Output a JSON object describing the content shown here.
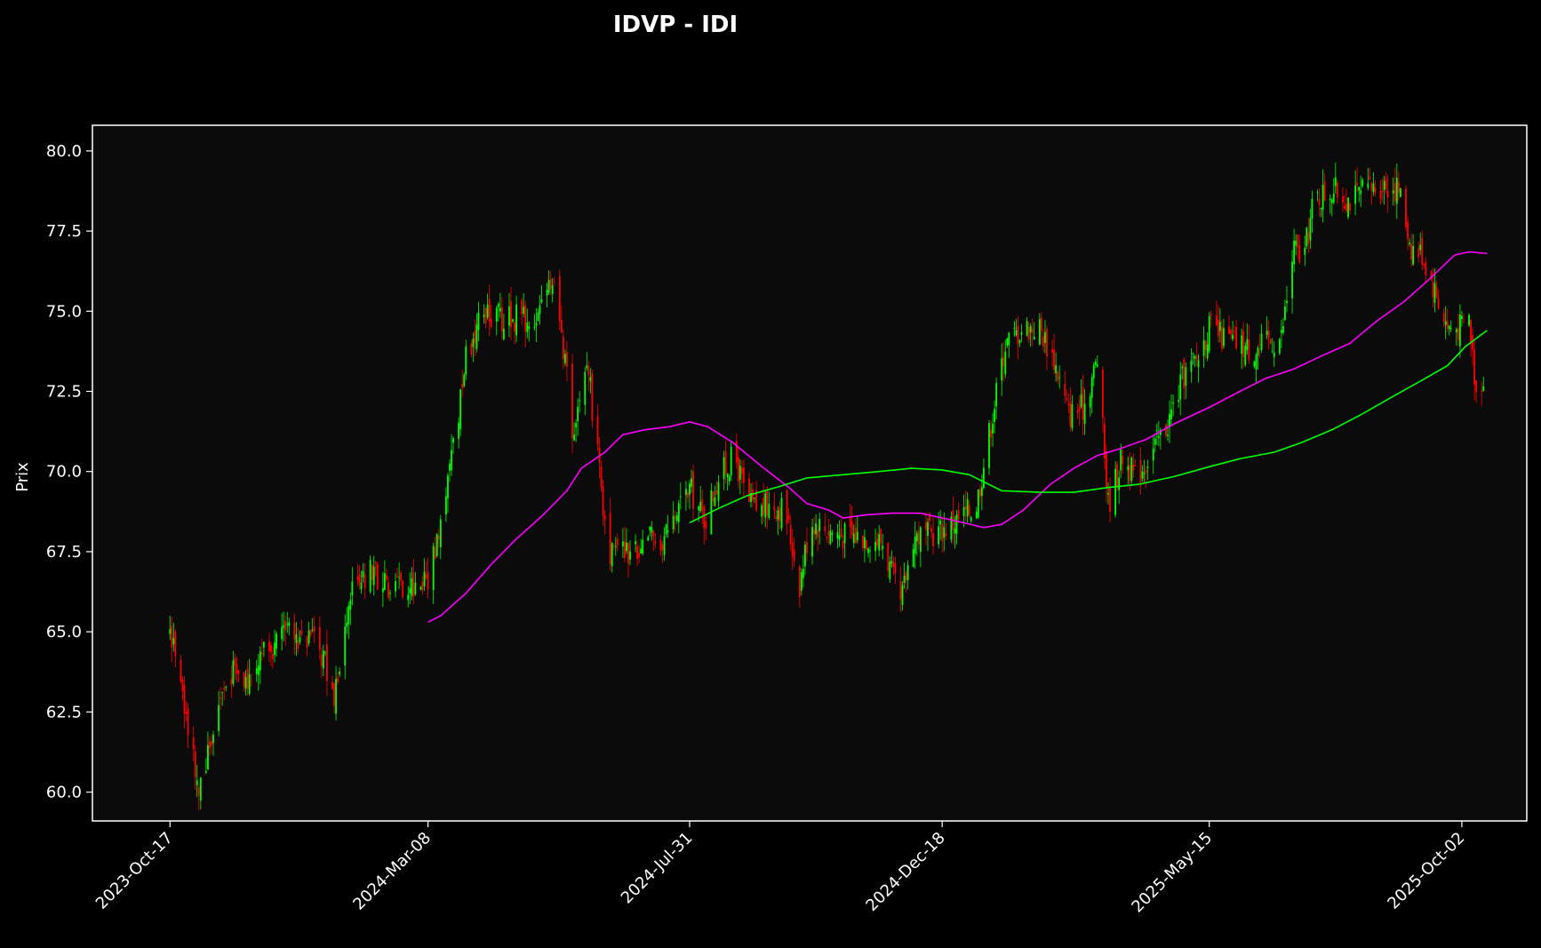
{
  "chart_data": {
    "type": "line",
    "title": "IDVP - IDI",
    "xlabel": "",
    "ylabel": "Prix",
    "x_tick_labels": [
      "2023-Oct-17",
      "2024-Mar-08",
      "2024-Jul-31",
      "2024-Dec-18",
      "2025-May-15",
      "2025-Oct-02"
    ],
    "y_tick_labels": [
      "60.0",
      "62.5",
      "65.0",
      "67.5",
      "70.0",
      "72.5",
      "75.0",
      "77.5",
      "80.0"
    ],
    "ylim": [
      59.1,
      80.8
    ],
    "xlim": [
      "2023-Sep-04",
      "2025-Nov-07"
    ],
    "grid": false,
    "colors": {
      "background": "#000000",
      "plot_background": "#0b0b0b",
      "up": "#00ff00",
      "down": "#ff0000",
      "ma_fast": "#ff00ff",
      "ma_slow": "#00ff00"
    },
    "price_path": [
      [
        "2023-Oct-17",
        64.8
      ],
      [
        "2023-Oct-22",
        64.2
      ],
      [
        "2023-Oct-27",
        62.0
      ],
      [
        "2023-Nov-02",
        60.3
      ],
      [
        "2023-Nov-08",
        61.5
      ],
      [
        "2023-Nov-14",
        63.0
      ],
      [
        "2023-Nov-20",
        63.8
      ],
      [
        "2023-Nov-28",
        63.5
      ],
      [
        "2023-Dec-06",
        64.5
      ],
      [
        "2023-Dec-14",
        64.5
      ],
      [
        "2023-Dec-22",
        65.0
      ],
      [
        "2024-Jan-02",
        64.8
      ],
      [
        "2024-Jan-10",
        64.3
      ],
      [
        "2024-Jan-16",
        63.0
      ],
      [
        "2024-Jan-22",
        65.0
      ],
      [
        "2024-Jan-28",
        66.8
      ],
      [
        "2024-Feb-05",
        66.8
      ],
      [
        "2024-Feb-14",
        66.5
      ],
      [
        "2024-Feb-22",
        66.5
      ],
      [
        "2024-Feb-29",
        66.5
      ],
      [
        "2024-Mar-08",
        66.7
      ],
      [
        "2024-Mar-15",
        68.5
      ],
      [
        "2024-Mar-22",
        70.8
      ],
      [
        "2024-Mar-29",
        73.5
      ],
      [
        "2024-Apr-05",
        74.8
      ],
      [
        "2024-Apr-18",
        74.8
      ],
      [
        "2024-May-01",
        74.8
      ],
      [
        "2024-May-10",
        75.0
      ],
      [
        "2024-May-16",
        76.2
      ],
      [
        "2024-May-22",
        73.8
      ],
      [
        "2024-May-28",
        71.0
      ],
      [
        "2024-Jun-04",
        73.5
      ],
      [
        "2024-Jun-10",
        70.5
      ],
      [
        "2024-Jun-15",
        67.5
      ],
      [
        "2024-Jun-22",
        67.5
      ],
      [
        "2024-Jun-30",
        67.5
      ],
      [
        "2024-Jul-06",
        68.0
      ],
      [
        "2024-Jul-14",
        67.8
      ],
      [
        "2024-Jul-22",
        68.5
      ],
      [
        "2024-Jul-31",
        69.5
      ],
      [
        "2024-Aug-08",
        68.5
      ],
      [
        "2024-Aug-16",
        69.8
      ],
      [
        "2024-Aug-25",
        70.5
      ],
      [
        "2024-Sep-01",
        69.0
      ],
      [
        "2024-Sep-08",
        68.8
      ],
      [
        "2024-Sep-15",
        69.0
      ],
      [
        "2024-Sep-22",
        68.8
      ],
      [
        "2024-Sep-30",
        66.5
      ],
      [
        "2024-Oct-06",
        68.5
      ],
      [
        "2024-Oct-15",
        68.2
      ],
      [
        "2024-Oct-25",
        68.0
      ],
      [
        "2024-Nov-05",
        68.0
      ],
      [
        "2024-Nov-15",
        67.8
      ],
      [
        "2024-Nov-25",
        65.8
      ],
      [
        "2024-Dec-02",
        68.0
      ],
      [
        "2024-Dec-10",
        68.0
      ],
      [
        "2024-Dec-18",
        68.2
      ],
      [
        "2024-Dec-27",
        68.5
      ],
      [
        "2025-Jan-06",
        69.0
      ],
      [
        "2025-Jan-14",
        71.5
      ],
      [
        "2025-Jan-22",
        74.0
      ],
      [
        "2025-Feb-01",
        74.5
      ],
      [
        "2025-Feb-10",
        74.5
      ],
      [
        "2025-Feb-18",
        73.5
      ],
      [
        "2025-Feb-26",
        71.8
      ],
      [
        "2025-Mar-06",
        72.0
      ],
      [
        "2025-Mar-14",
        73.5
      ],
      [
        "2025-Mar-20",
        69.0
      ],
      [
        "2025-Mar-28",
        70.5
      ],
      [
        "2025-Apr-04",
        69.8
      ],
      [
        "2025-Apr-12",
        70.5
      ],
      [
        "2025-Apr-22",
        71.5
      ],
      [
        "2025-May-01",
        73.0
      ],
      [
        "2025-May-08",
        73.5
      ],
      [
        "2025-May-15",
        74.5
      ],
      [
        "2025-May-22",
        74.2
      ],
      [
        "2025-May-30",
        74.0
      ],
      [
        "2025-Jun-08",
        73.8
      ],
      [
        "2025-Jun-16",
        74.0
      ],
      [
        "2025-Jun-24",
        74.2
      ],
      [
        "2025-Jul-01",
        77.0
      ],
      [
        "2025-Jul-06",
        76.5
      ],
      [
        "2025-Jul-12",
        78.5
      ],
      [
        "2025-Jul-22",
        78.8
      ],
      [
        "2025-Aug-01",
        78.5
      ],
      [
        "2025-Aug-12",
        78.8
      ],
      [
        "2025-Aug-20",
        79.0
      ],
      [
        "2025-Aug-28",
        78.8
      ],
      [
        "2025-Sep-04",
        77.0
      ],
      [
        "2025-Sep-10",
        76.8
      ],
      [
        "2025-Sep-18",
        75.5
      ],
      [
        "2025-Sep-24",
        74.5
      ],
      [
        "2025-Oct-01",
        74.5
      ],
      [
        "2025-Oct-06",
        74.8
      ],
      [
        "2025-Oct-10",
        72.5
      ],
      [
        "2025-Oct-14",
        73.0
      ]
    ],
    "series": [
      {
        "color": "#ff00ff",
        "points": [
          [
            "2024-Mar-08",
            65.3
          ],
          [
            "2024-Mar-15",
            65.5
          ],
          [
            "2024-Mar-29",
            66.2
          ],
          [
            "2024-Apr-12",
            67.1
          ],
          [
            "2024-Apr-26",
            67.9
          ],
          [
            "2024-May-10",
            68.6
          ],
          [
            "2024-May-24",
            69.4
          ],
          [
            "2024-Jun-01",
            70.1
          ],
          [
            "2024-Jun-14",
            70.6
          ],
          [
            "2024-Jun-24",
            71.15
          ],
          [
            "2024-Jul-06",
            71.3
          ],
          [
            "2024-Jul-20",
            71.4
          ],
          [
            "2024-Jul-31",
            71.55
          ],
          [
            "2024-Aug-10",
            71.4
          ],
          [
            "2024-Aug-24",
            70.9
          ],
          [
            "2024-Sep-08",
            70.2
          ],
          [
            "2024-Sep-24",
            69.5
          ],
          [
            "2024-Oct-04",
            69.0
          ],
          [
            "2024-Oct-16",
            68.8
          ],
          [
            "2024-Oct-24",
            68.55
          ],
          [
            "2024-Nov-06",
            68.65
          ],
          [
            "2024-Nov-20",
            68.7
          ],
          [
            "2024-Dec-06",
            68.7
          ],
          [
            "2024-Dec-18",
            68.55
          ],
          [
            "2024-Dec-30",
            68.4
          ],
          [
            "2025-Jan-10",
            68.25
          ],
          [
            "2025-Jan-20",
            68.35
          ],
          [
            "2025-Feb-01",
            68.8
          ],
          [
            "2025-Feb-16",
            69.6
          ],
          [
            "2025-Mar-01",
            70.1
          ],
          [
            "2025-Mar-14",
            70.5
          ],
          [
            "2025-Mar-26",
            70.7
          ],
          [
            "2025-Apr-10",
            71.0
          ],
          [
            "2025-Apr-26",
            71.5
          ],
          [
            "2025-May-15",
            72.0
          ],
          [
            "2025-Jun-01",
            72.5
          ],
          [
            "2025-Jun-15",
            72.9
          ],
          [
            "2025-Jul-01",
            73.2
          ],
          [
            "2025-Jul-16",
            73.6
          ],
          [
            "2025-Aug-01",
            74.0
          ],
          [
            "2025-Aug-16",
            74.7
          ],
          [
            "2025-Aug-31",
            75.3
          ],
          [
            "2025-Sep-14",
            76.0
          ],
          [
            "2025-Sep-28",
            76.75
          ],
          [
            "2025-Oct-06",
            76.85
          ],
          [
            "2025-Oct-16",
            76.8
          ]
        ]
      },
      {
        "color": "#00ff00",
        "points": [
          [
            "2024-Jul-31",
            68.4
          ],
          [
            "2024-Aug-16",
            68.85
          ],
          [
            "2024-Sep-01",
            69.25
          ],
          [
            "2024-Sep-20",
            69.55
          ],
          [
            "2024-Oct-04",
            69.8
          ],
          [
            "2024-Oct-24",
            69.9
          ],
          [
            "2024-Nov-13",
            70.0
          ],
          [
            "2024-Dec-01",
            70.1
          ],
          [
            "2024-Dec-18",
            70.05
          ],
          [
            "2025-Jan-02",
            69.9
          ],
          [
            "2025-Jan-20",
            69.4
          ],
          [
            "2025-Feb-10",
            69.35
          ],
          [
            "2025-Mar-01",
            69.35
          ],
          [
            "2025-Mar-20",
            69.5
          ],
          [
            "2025-Apr-06",
            69.6
          ],
          [
            "2025-Apr-26",
            69.85
          ],
          [
            "2025-May-15",
            70.15
          ],
          [
            "2025-Jun-01",
            70.4
          ],
          [
            "2025-Jun-20",
            70.6
          ],
          [
            "2025-Jul-05",
            70.9
          ],
          [
            "2025-Jul-22",
            71.3
          ],
          [
            "2025-Aug-08",
            71.8
          ],
          [
            "2025-Aug-25",
            72.35
          ],
          [
            "2025-Sep-10",
            72.85
          ],
          [
            "2025-Sep-24",
            73.3
          ],
          [
            "2025-Oct-04",
            73.9
          ],
          [
            "2025-Oct-16",
            74.4
          ]
        ]
      }
    ]
  }
}
